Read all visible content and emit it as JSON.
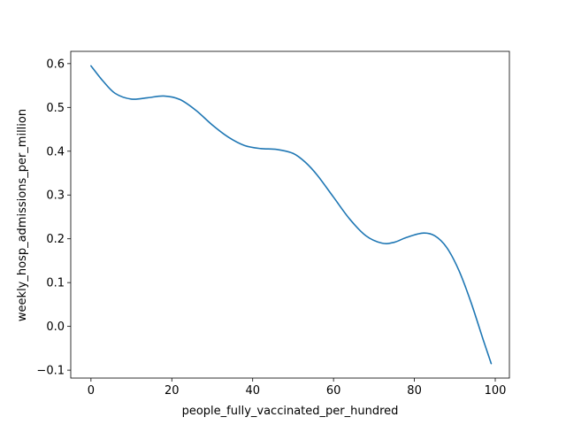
{
  "chart_data": {
    "type": "line",
    "title": "",
    "xlabel": "people_fully_vaccinated_per_hundred",
    "ylabel": "weekly_hosp_admissions_per_million",
    "xlim": [
      -5,
      103.5
    ],
    "ylim": [
      -0.118,
      0.628
    ],
    "x_ticks": [
      0,
      20,
      40,
      60,
      80,
      100
    ],
    "x_tick_labels": [
      "0",
      "20",
      "40",
      "60",
      "80",
      "100"
    ],
    "y_ticks": [
      -0.1,
      0.0,
      0.1,
      0.2,
      0.3,
      0.4,
      0.5,
      0.6
    ],
    "y_tick_labels": [
      "−0.1",
      "0.0",
      "0.1",
      "0.2",
      "0.3",
      "0.4",
      "0.5",
      "0.6"
    ],
    "grid": false,
    "legend": "none",
    "colors": {
      "series": "#1f77b4"
    },
    "series": [
      {
        "x": [
          0,
          3,
          6,
          10,
          14,
          18,
          22,
          26,
          30,
          34,
          38,
          42,
          46,
          50,
          53,
          56,
          60,
          64,
          68,
          72,
          75,
          78,
          82,
          85,
          88,
          91,
          94,
          97,
          99
        ],
        "y": [
          0.595,
          0.56,
          0.532,
          0.519,
          0.522,
          0.526,
          0.518,
          0.493,
          0.46,
          0.432,
          0.413,
          0.406,
          0.404,
          0.395,
          0.375,
          0.345,
          0.295,
          0.245,
          0.207,
          0.19,
          0.192,
          0.203,
          0.213,
          0.207,
          0.18,
          0.128,
          0.055,
          -0.03,
          -0.085
        ]
      }
    ]
  }
}
